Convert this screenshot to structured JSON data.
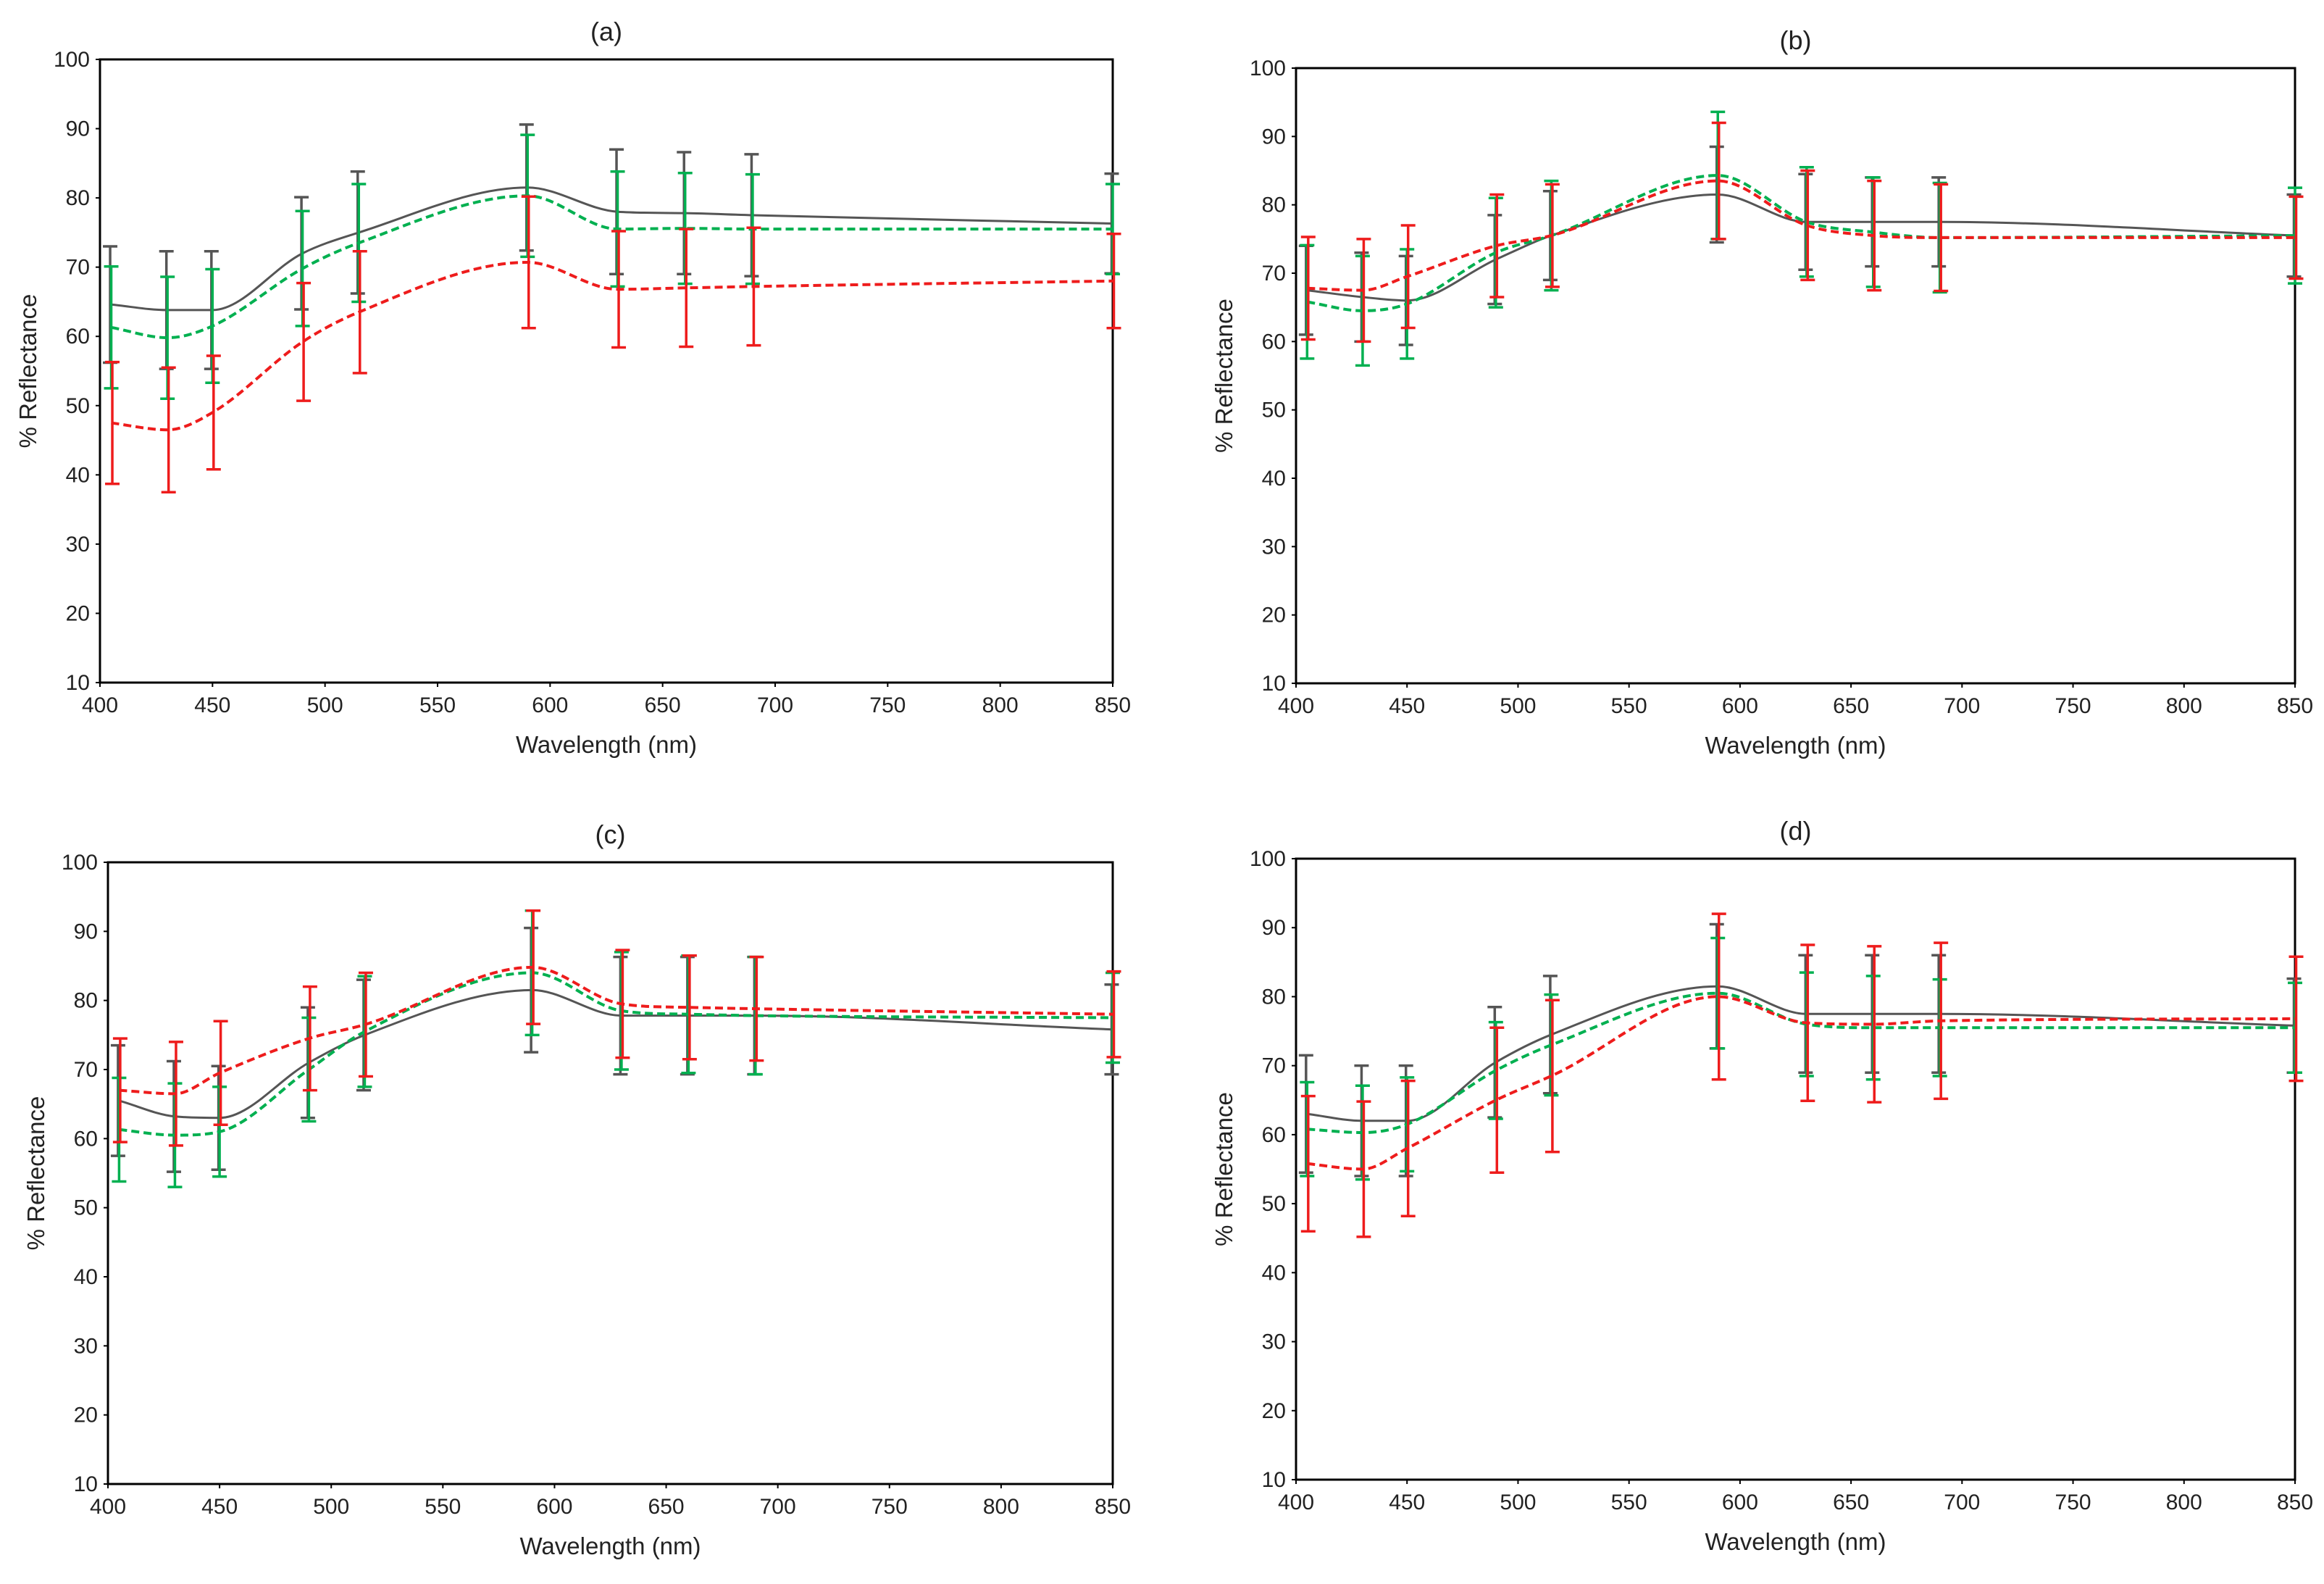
{
  "figure": {
    "description_free": true
  },
  "colors": {
    "black_series": "#555555",
    "green_series": "#00b050",
    "red_series": "#ee1c1c",
    "axis": "#000000"
  },
  "chart_data": [
    {
      "type": "line",
      "title": "(a)",
      "xlabel": "Wavelength (nm)",
      "ylabel": "% Reflectance",
      "xlim": [
        400,
        850
      ],
      "ylim": [
        10,
        100
      ],
      "xticks": [
        400,
        450,
        500,
        550,
        600,
        650,
        700,
        750,
        800,
        850
      ],
      "yticks": [
        10,
        20,
        30,
        40,
        50,
        60,
        70,
        80,
        90,
        100
      ],
      "x": [
        405,
        430,
        450,
        490,
        515,
        590,
        630,
        660,
        690,
        850
      ],
      "series": [
        {
          "name": "black",
          "style": "solid",
          "values": [
            64.6,
            63.8,
            63.8,
            72.0,
            75.0,
            81.5,
            78.0,
            77.8,
            77.5,
            76.3
          ],
          "err": [
            8.4,
            8.5,
            8.5,
            8.1,
            8.8,
            9.1,
            9.0,
            8.8,
            8.8,
            7.2
          ]
        },
        {
          "name": "green",
          "style": "dashed",
          "values": [
            61.3,
            59.8,
            61.5,
            69.8,
            73.5,
            80.3,
            75.5,
            75.6,
            75.5,
            75.5
          ],
          "err": [
            8.8,
            8.8,
            8.2,
            8.3,
            8.5,
            8.8,
            8.3,
            8.0,
            7.9,
            6.5
          ]
        },
        {
          "name": "red",
          "style": "dashed",
          "values": [
            47.5,
            46.5,
            49.0,
            59.2,
            63.5,
            70.7,
            66.8,
            67.0,
            67.2,
            68.0
          ],
          "err": [
            8.8,
            9.0,
            8.2,
            8.5,
            8.8,
            9.5,
            8.4,
            8.5,
            8.5,
            6.8
          ]
        }
      ]
    },
    {
      "type": "line",
      "title": "(b)",
      "xlabel": "Wavelength (nm)",
      "ylabel": "% Reflectance",
      "xlim": [
        400,
        850
      ],
      "ylim": [
        10,
        100
      ],
      "xticks": [
        400,
        450,
        500,
        550,
        600,
        650,
        700,
        750,
        800,
        850
      ],
      "yticks": [
        10,
        20,
        30,
        40,
        50,
        60,
        70,
        80,
        90,
        100
      ],
      "x": [
        405,
        430,
        450,
        490,
        515,
        590,
        630,
        660,
        690,
        850
      ],
      "series": [
        {
          "name": "black",
          "style": "solid",
          "values": [
            67.5,
            66.5,
            66.0,
            72.0,
            75.5,
            81.5,
            77.5,
            77.5,
            77.5,
            75.5
          ],
          "err": [
            6.5,
            6.5,
            6.5,
            6.5,
            6.5,
            7.0,
            7.0,
            6.5,
            6.5,
            6.0
          ]
        },
        {
          "name": "green",
          "style": "dashed",
          "values": [
            65.8,
            64.5,
            65.5,
            73.0,
            75.5,
            84.3,
            77.5,
            76.0,
            75.2,
            75.5
          ],
          "err": [
            8.3,
            8.0,
            8.0,
            8.0,
            8.0,
            9.3,
            8.0,
            8.0,
            8.0,
            7.0
          ]
        },
        {
          "name": "red",
          "style": "dashed",
          "values": [
            67.8,
            67.5,
            69.5,
            74.0,
            75.5,
            83.5,
            77.0,
            75.5,
            75.2,
            75.2
          ],
          "err": [
            7.5,
            7.5,
            7.5,
            7.5,
            7.5,
            8.5,
            8.0,
            8.0,
            7.8,
            6.0
          ]
        }
      ]
    },
    {
      "type": "line",
      "title": "(c)",
      "xlabel": "Wavelength (nm)",
      "ylabel": "% Reflectance",
      "xlim": [
        400,
        850
      ],
      "ylim": [
        10,
        100
      ],
      "xticks": [
        400,
        450,
        500,
        550,
        600,
        650,
        700,
        750,
        800,
        850
      ],
      "yticks": [
        10,
        20,
        30,
        40,
        50,
        60,
        70,
        80,
        90,
        100
      ],
      "x": [
        405,
        430,
        450,
        490,
        515,
        590,
        630,
        660,
        690,
        850
      ],
      "series": [
        {
          "name": "black",
          "style": "solid",
          "values": [
            65.5,
            63.2,
            63.0,
            71.0,
            75.0,
            81.5,
            77.8,
            77.8,
            77.8,
            75.8
          ],
          "err": [
            8.0,
            8.0,
            7.5,
            8.0,
            8.0,
            9.0,
            8.5,
            8.5,
            8.5,
            6.5
          ]
        },
        {
          "name": "green",
          "style": "dashed",
          "values": [
            61.3,
            60.5,
            61.0,
            70.0,
            75.5,
            84.0,
            78.5,
            78.0,
            77.8,
            77.5
          ],
          "err": [
            7.5,
            7.5,
            6.5,
            7.5,
            8.0,
            9.0,
            8.5,
            8.5,
            8.5,
            6.5
          ]
        },
        {
          "name": "red",
          "style": "dashed",
          "values": [
            67.0,
            66.5,
            69.5,
            74.5,
            76.5,
            84.8,
            79.5,
            79.0,
            78.8,
            78.0
          ],
          "err": [
            7.5,
            7.5,
            7.5,
            7.5,
            7.5,
            8.2,
            7.8,
            7.5,
            7.5,
            6.2
          ]
        }
      ]
    },
    {
      "type": "line",
      "title": "(d)",
      "xlabel": "Wavelength (nm)",
      "ylabel": "% Reflectance",
      "xlim": [
        400,
        850
      ],
      "ylim": [
        10,
        100
      ],
      "xticks": [
        400,
        450,
        500,
        550,
        600,
        650,
        700,
        750,
        800,
        850
      ],
      "yticks": [
        10,
        20,
        30,
        40,
        50,
        60,
        70,
        80,
        90,
        100
      ],
      "x": [
        405,
        430,
        450,
        490,
        515,
        590,
        630,
        660,
        690,
        850
      ],
      "series": [
        {
          "name": "black",
          "style": "solid",
          "values": [
            63.0,
            62.0,
            62.0,
            70.5,
            74.5,
            81.5,
            77.5,
            77.5,
            77.5,
            75.8
          ],
          "err": [
            8.5,
            8.0,
            8.0,
            8.0,
            8.5,
            9.0,
            8.5,
            8.5,
            8.5,
            6.8
          ]
        },
        {
          "name": "green",
          "style": "dashed",
          "values": [
            60.8,
            60.3,
            61.5,
            69.3,
            73.0,
            80.5,
            76.0,
            75.5,
            75.5,
            75.5
          ],
          "err": [
            6.8,
            6.8,
            6.8,
            7.0,
            7.3,
            8.0,
            7.5,
            7.5,
            7.0,
            6.5
          ]
        },
        {
          "name": "red",
          "style": "dashed",
          "values": [
            55.8,
            55.0,
            58.0,
            65.0,
            68.5,
            80.0,
            76.2,
            76.0,
            76.5,
            76.8
          ],
          "err": [
            9.8,
            9.8,
            9.8,
            10.5,
            11.0,
            12.0,
            11.3,
            11.3,
            11.3,
            9.0
          ]
        }
      ]
    }
  ]
}
